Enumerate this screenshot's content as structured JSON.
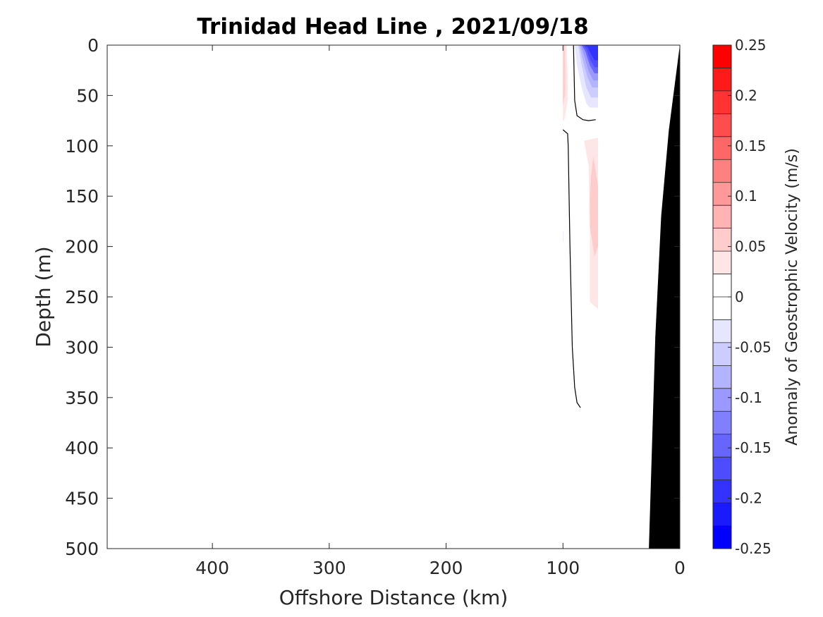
{
  "chart_data": {
    "type": "contourf",
    "title": "Trinidad Head Line , 2021/09/18",
    "xlabel": "Offshore Distance (km)",
    "ylabel": "Depth (m)",
    "colorbar_label": "Anomaly of Geostrophic Velocity (m/s)",
    "xlim": [
      490,
      0
    ],
    "ylim": [
      0,
      500
    ],
    "x_reversed": true,
    "y_reversed": true,
    "x_ticks": [
      400,
      300,
      200,
      100,
      0
    ],
    "y_ticks": [
      0,
      50,
      100,
      150,
      200,
      250,
      300,
      350,
      400,
      450,
      500
    ],
    "grid": false,
    "colorbar": {
      "min": -0.25,
      "max": 0.25,
      "step": 0.025,
      "ticks": [
        0.25,
        0.2,
        0.15,
        0.1,
        0.05,
        0,
        -0.05,
        -0.1,
        -0.15,
        -0.2,
        -0.25
      ],
      "tick_labels": [
        "0.25",
        "0.2",
        "0.15",
        "0.1",
        "0.05",
        "0",
        "-0.05",
        "-0.1",
        "-0.15",
        "-0.2",
        "-0.25"
      ],
      "colors": [
        "#ff0000",
        "#ff1a1a",
        "#ff3333",
        "#ff4d4d",
        "#ff6666",
        "#ff8080",
        "#ff9999",
        "#ffb3b3",
        "#ffcccc",
        "#ffe6e6",
        "#ffffff",
        "#ffffff",
        "#e6e6ff",
        "#ccccff",
        "#b3b3ff",
        "#9999ff",
        "#8080ff",
        "#6666ff",
        "#4d4dff",
        "#3333ff",
        "#1a1aff",
        "#0000ff"
      ]
    },
    "regions": [
      {
        "value": 0.0375,
        "points": [
          [
            100,
            0
          ],
          [
            97,
            0
          ],
          [
            96,
            30
          ],
          [
            96,
            55
          ],
          [
            99,
            75
          ],
          [
            100,
            75
          ]
        ]
      },
      {
        "value": 0.0625,
        "points": [
          [
            100,
            0
          ],
          [
            98.5,
            0
          ],
          [
            98,
            30
          ],
          [
            98.5,
            50
          ],
          [
            100,
            60
          ]
        ]
      },
      {
        "value": -0.0375,
        "points": [
          [
            90,
            0
          ],
          [
            70,
            0
          ],
          [
            70,
            62
          ],
          [
            77,
            62
          ],
          [
            80,
            58
          ],
          [
            84,
            42
          ],
          [
            88,
            20
          ]
        ]
      },
      {
        "value": -0.0625,
        "points": [
          [
            87,
            0
          ],
          [
            70,
            0
          ],
          [
            70,
            52
          ],
          [
            76,
            52
          ],
          [
            80,
            42
          ],
          [
            84,
            20
          ]
        ]
      },
      {
        "value": -0.0875,
        "points": [
          [
            86,
            0
          ],
          [
            70,
            0
          ],
          [
            70,
            42
          ],
          [
            75,
            42
          ],
          [
            79,
            32
          ],
          [
            83,
            15
          ]
        ]
      },
      {
        "value": -0.1125,
        "points": [
          [
            85,
            0
          ],
          [
            70,
            0
          ],
          [
            70,
            35
          ],
          [
            74,
            35
          ],
          [
            78,
            26
          ],
          [
            82,
            10
          ]
        ]
      },
      {
        "value": -0.1375,
        "points": [
          [
            84,
            0
          ],
          [
            70,
            0
          ],
          [
            70,
            28
          ],
          [
            73,
            28
          ],
          [
            77,
            20
          ],
          [
            81,
            6
          ]
        ]
      },
      {
        "value": -0.1625,
        "points": [
          [
            83,
            0
          ],
          [
            70,
            0
          ],
          [
            70,
            22
          ],
          [
            73,
            22
          ],
          [
            77,
            14
          ],
          [
            80,
            4
          ]
        ]
      },
      {
        "value": -0.1875,
        "points": [
          [
            82,
            0
          ],
          [
            70,
            0
          ],
          [
            70,
            15
          ],
          [
            73,
            15
          ],
          [
            76,
            9
          ],
          [
            79,
            2
          ]
        ]
      },
      {
        "value": 0.0125,
        "points": [
          [
            88,
            96
          ],
          [
            82,
            108
          ],
          [
            80,
            145
          ],
          [
            80,
            200
          ],
          [
            82,
            240
          ],
          [
            84,
            268
          ],
          [
            80,
            278
          ],
          [
            76,
            285
          ],
          [
            74,
            260
          ],
          [
            70,
            262
          ],
          [
            70,
            92
          ]
        ]
      },
      {
        "value": 0.0375,
        "points": [
          [
            82,
            95
          ],
          [
            78,
            120
          ],
          [
            77,
            180
          ],
          [
            77,
            255
          ],
          [
            70,
            262
          ],
          [
            70,
            92
          ]
        ]
      },
      {
        "value": 0.0625,
        "points": [
          [
            74,
            110
          ],
          [
            72,
            125
          ],
          [
            70,
            140
          ],
          [
            70,
            165
          ],
          [
            70,
            200
          ],
          [
            73,
            210
          ],
          [
            77,
            180
          ],
          [
            77,
            150
          ],
          [
            76,
            130
          ]
        ]
      },
      {
        "value": -0.0125,
        "points": [
          [
            100,
            120
          ],
          [
            99.3,
            120
          ],
          [
            99.3,
            230
          ],
          [
            100,
            230
          ]
        ]
      },
      {
        "value": -0.0375,
        "points": [
          [
            100,
            185
          ],
          [
            99.5,
            185
          ],
          [
            99.5,
            195
          ],
          [
            100,
            195
          ]
        ]
      },
      {
        "value": -0.0125,
        "points": [
          [
            84,
            500
          ],
          [
            84,
            468
          ],
          [
            82,
            442
          ],
          [
            80,
            438
          ],
          [
            79,
            450
          ],
          [
            76,
            460
          ],
          [
            74,
            470
          ],
          [
            79,
            480
          ],
          [
            77,
            495
          ],
          [
            74,
            500
          ]
        ]
      }
    ],
    "zero_contours": [
      [
        [
          91,
          0
        ],
        [
          90,
          55
        ],
        [
          88,
          70
        ],
        [
          83,
          74
        ],
        [
          78,
          75
        ],
        [
          72,
          74
        ]
      ],
      [
        [
          100,
          84
        ],
        [
          96,
          88
        ],
        [
          95.5,
          100
        ],
        [
          94,
          200
        ],
        [
          92,
          300
        ],
        [
          90,
          340
        ],
        [
          88,
          355
        ],
        [
          85,
          360
        ]
      ]
    ],
    "bathymetry": [
      [
        0,
        0
      ],
      [
        9.5,
        85
      ],
      [
        16,
        170
      ],
      [
        21,
        290
      ],
      [
        26.5,
        500
      ],
      [
        0,
        500
      ]
    ],
    "bathymetry_color": "#000000"
  }
}
